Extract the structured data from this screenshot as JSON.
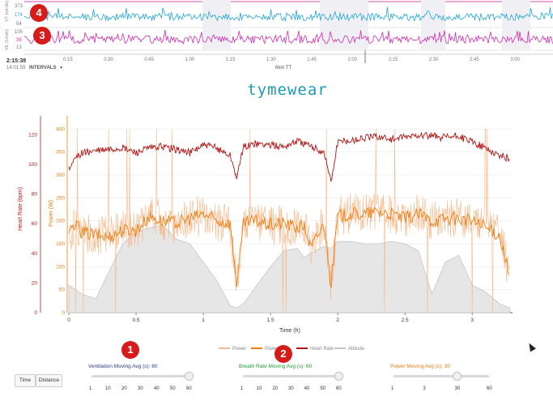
{
  "top_panel": {
    "vt": {
      "label": "VT (mL/br)",
      "ticks": [
        "373",
        "174",
        "54"
      ],
      "color": "#1fa6d6"
    },
    "ve": {
      "label": "VE (L/min)",
      "ticks": [
        "105",
        "35",
        "13"
      ],
      "color": "#d12bb0"
    },
    "time_ticks": [
      "0:15",
      "0:30",
      "0:45",
      "1:00",
      "1:15",
      "1:30",
      "1:45",
      "2:00",
      "2:15",
      "2:30",
      "2:45",
      "3:00"
    ],
    "current_time": "2:15:38",
    "clock": "14:01:59",
    "intervals_label": "INTERVALS",
    "center_label": "6km TT"
  },
  "badges": [
    "4",
    "3",
    "1",
    "2"
  ],
  "brand": "tymewear",
  "chart_data": {
    "type": "line",
    "xlabel": "Time (h)",
    "x_ticks": [
      "0",
      "0.5",
      "1",
      "1.5",
      "2",
      "2.5",
      "3"
    ],
    "xlim": [
      0,
      3.3
    ],
    "axes": {
      "heart_rate": {
        "label": "Heart Rate (bpm)",
        "ticks": [
          "0",
          "20",
          "40",
          "60",
          "80",
          "100",
          "120"
        ],
        "ylim": [
          0,
          130
        ],
        "color": "#c01818"
      },
      "power": {
        "label": "Power (W)",
        "ticks": [
          "0",
          "50",
          "100",
          "150",
          "200",
          "250",
          "300",
          "350",
          "400"
        ],
        "ylim": [
          0,
          420
        ],
        "color": "#f07d12"
      }
    },
    "legend": [
      "Power",
      "Power",
      "Heart Rate",
      "Altitude"
    ],
    "series": [
      {
        "name": "Heart Rate",
        "color": "#b31414",
        "x": [
          0.0,
          0.05,
          0.1,
          0.2,
          0.3,
          0.4,
          0.5,
          0.6,
          0.7,
          0.8,
          0.9,
          1.0,
          1.1,
          1.2,
          1.25,
          1.3,
          1.4,
          1.5,
          1.6,
          1.7,
          1.75,
          1.8,
          1.9,
          1.95,
          2.0,
          2.1,
          2.2,
          2.3,
          2.4,
          2.5,
          2.6,
          2.7,
          2.8,
          2.9,
          3.0,
          3.1,
          3.2,
          3.28
        ],
        "y": [
          96,
          104,
          108,
          109,
          110,
          111,
          108,
          111,
          112,
          110,
          108,
          113,
          111,
          106,
          91,
          112,
          114,
          113,
          112,
          116,
          114,
          112,
          108,
          88,
          115,
          116,
          118,
          119,
          117,
          118,
          120,
          119,
          118,
          119,
          115,
          111,
          106,
          104
        ]
      },
      {
        "name": "Power",
        "color": "#f07d12",
        "x": [
          0.0,
          0.05,
          0.1,
          0.2,
          0.3,
          0.4,
          0.5,
          0.6,
          0.7,
          0.8,
          0.9,
          1.0,
          1.1,
          1.2,
          1.25,
          1.3,
          1.4,
          1.5,
          1.6,
          1.7,
          1.75,
          1.8,
          1.9,
          1.95,
          2.0,
          2.1,
          2.2,
          2.3,
          2.4,
          2.5,
          2.6,
          2.7,
          2.8,
          2.9,
          3.0,
          3.1,
          3.2,
          3.28
        ],
        "y": [
          170,
          190,
          175,
          170,
          165,
          180,
          180,
          210,
          200,
          195,
          205,
          215,
          200,
          195,
          60,
          195,
          200,
          190,
          195,
          185,
          190,
          140,
          195,
          60,
          210,
          215,
          215,
          220,
          215,
          205,
          215,
          200,
          205,
          205,
          200,
          185,
          170,
          80
        ]
      },
      {
        "name": "Altitude",
        "color": "#c6c6c6",
        "x": [
          0.0,
          0.05,
          0.1,
          0.2,
          0.3,
          0.4,
          0.5,
          0.6,
          0.7,
          0.8,
          0.9,
          1.0,
          1.1,
          1.2,
          1.25,
          1.3,
          1.4,
          1.5,
          1.6,
          1.7,
          1.75,
          1.8,
          1.9,
          1.95,
          2.0,
          2.1,
          2.2,
          2.3,
          2.4,
          2.5,
          2.6,
          2.7,
          2.8,
          2.9,
          3.0,
          3.1,
          3.2,
          3.28
        ],
        "y": [
          60,
          50,
          40,
          30,
          90,
          150,
          175,
          185,
          190,
          160,
          150,
          110,
          70,
          15,
          10,
          20,
          60,
          100,
          135,
          140,
          120,
          130,
          145,
          140,
          155,
          155,
          150,
          150,
          155,
          150,
          135,
          40,
          110,
          125,
          60,
          45,
          20,
          10
        ]
      }
    ]
  },
  "controls": {
    "time_button": "Time",
    "distance_button": "Distance",
    "ventilation": {
      "title": "Ventilation Moving Avg (s): 60",
      "ticks": [
        "1",
        "10",
        "20",
        "30",
        "40",
        "50",
        "60"
      ],
      "value": 60,
      "color": "#2a3a8c"
    },
    "breath": {
      "title": "Breath Rate Moving Avg (s): 60",
      "ticks": [
        "1",
        "10",
        "20",
        "30",
        "40",
        "50",
        "60"
      ],
      "value": 60,
      "color": "#1e9e2a"
    },
    "power": {
      "title": "Power Moving Avg (s): 30",
      "ticks": [
        "1",
        "3",
        "30",
        "60"
      ],
      "value": 30,
      "color": "#f07d12"
    }
  }
}
